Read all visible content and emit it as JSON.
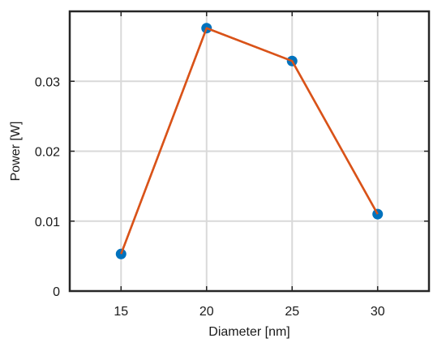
{
  "chart_data": {
    "type": "line",
    "xlabel": "Diameter [nm]",
    "ylabel": "Power [W]",
    "xlim": [
      12,
      33
    ],
    "ylim": [
      0,
      0.04
    ],
    "x_ticks": [
      15,
      20,
      25,
      30
    ],
    "y_ticks": [
      0,
      0.01,
      0.02,
      0.03
    ],
    "y_tick_labels": [
      "0",
      "0.01",
      "0.02",
      "0.03"
    ],
    "grid": true,
    "series": [
      {
        "x": [
          15,
          20,
          25,
          30
        ],
        "y": [
          0.0053,
          0.0376,
          0.0329,
          0.011
        ],
        "line_color": "#d95319",
        "marker_color": "#0072bd"
      }
    ]
  }
}
